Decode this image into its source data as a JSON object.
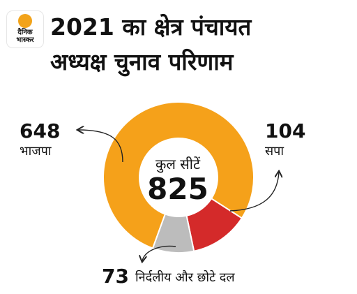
{
  "logo": {
    "line1": "दैनिक",
    "line2": "भास्कर",
    "sun_color": "#f2a31a"
  },
  "title": {
    "line1": "2021 का क्षेत्र पंचायत",
    "line2": "अध्यक्ष चुनाव परिणाम"
  },
  "chart_data": {
    "type": "donut",
    "center_label": "कुल सीटें",
    "total": 825,
    "slices": [
      {
        "label": "भाजपा",
        "value": 648,
        "color": "#f5a11a"
      },
      {
        "label": "सपा",
        "value": 104,
        "color": "#d42a2a"
      },
      {
        "label": "निर्दलीय और छोटे दल",
        "value": 73,
        "color": "#bcbcbc"
      }
    ]
  }
}
